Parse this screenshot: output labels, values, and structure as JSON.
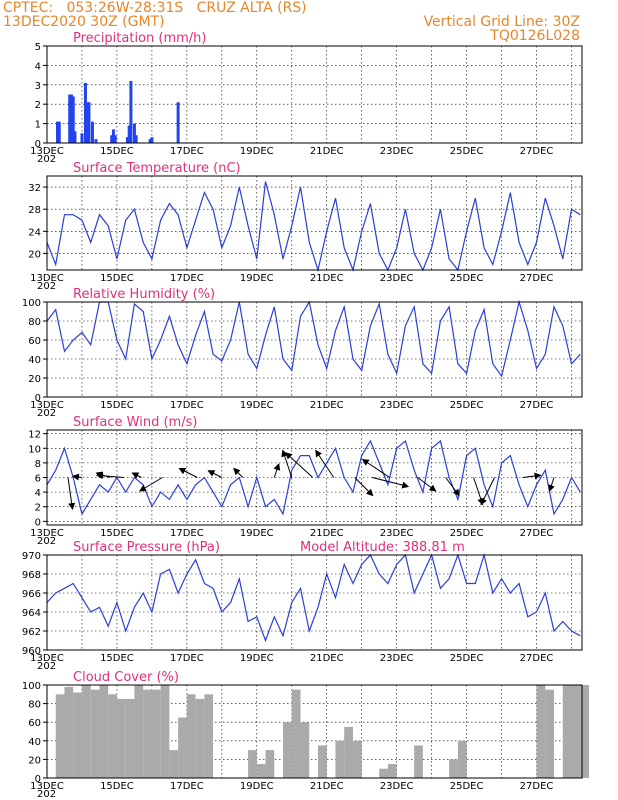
{
  "header": {
    "left1": "CPTEC:   053:26W-28:31S   CRUZ ALTA (RS)",
    "left2": "13DEC2020 30Z (GMT)",
    "right1": "Vertical Grid Line: 30Z",
    "right2": "TQ0126L028"
  },
  "colors": {
    "line": "#2a3fd6",
    "bar": "#2244ee",
    "cloud": "#aaaaaa",
    "title": "#e0307a",
    "header": "#e8862a"
  },
  "x_axis": {
    "date_labels": [
      "13DEC",
      "15DEC",
      "17DEC",
      "19DEC",
      "21DEC",
      "23DEC",
      "25DEC",
      "27DEC"
    ],
    "year_label": "202"
  },
  "chart_data": [
    {
      "type": "bar",
      "title": "Precipitation (mm/h)",
      "ylim": [
        0,
        5
      ],
      "yticks": [
        "0",
        "1",
        "2",
        "3",
        "4",
        "5"
      ],
      "x_days": [
        0.3,
        0.35,
        0.65,
        0.7,
        0.75,
        0.8,
        1.0,
        1.1,
        1.15,
        1.2,
        1.3,
        1.4,
        1.85,
        1.9,
        1.95,
        2.3,
        2.35,
        2.4,
        2.5,
        2.55,
        2.95,
        3.0,
        3.75
      ],
      "values": [
        1.1,
        1.1,
        2.5,
        2.5,
        2.4,
        0.6,
        0.5,
        3.1,
        2.1,
        2.1,
        1.1,
        0.2,
        0.4,
        0.7,
        0.4,
        0.3,
        0.9,
        3.2,
        1.0,
        0.4,
        0.2,
        0.3,
        2.1
      ]
    },
    {
      "type": "line",
      "title": "Surface Temperature (nC)",
      "ylim": [
        17,
        34
      ],
      "yticks": [
        "20",
        "24",
        "28",
        "32"
      ],
      "x_days": [
        0,
        0.25,
        0.5,
        0.75,
        1,
        1.25,
        1.5,
        1.75,
        2,
        2.25,
        2.5,
        2.75,
        3,
        3.25,
        3.5,
        3.75,
        4,
        4.25,
        4.5,
        4.75,
        5,
        5.25,
        5.5,
        5.75,
        6,
        6.25,
        6.5,
        6.75,
        7,
        7.25,
        7.5,
        7.75,
        8,
        8.25,
        8.5,
        8.75,
        9,
        9.25,
        9.5,
        9.75,
        10,
        10.25,
        10.5,
        10.75,
        11,
        11.25,
        11.5,
        11.75,
        12,
        12.25,
        12.5,
        12.75,
        13,
        13.25,
        13.5,
        13.75,
        14,
        14.25,
        14.5,
        14.75,
        15,
        15.25
      ],
      "values": [
        22,
        18,
        27,
        27,
        26,
        22,
        27,
        25,
        19,
        26,
        28,
        22,
        19,
        26,
        29,
        27,
        21,
        26,
        31,
        28,
        21,
        25,
        32,
        25,
        19,
        33,
        27,
        19,
        25,
        32,
        22,
        17,
        24,
        30,
        21,
        17,
        24,
        29,
        20,
        16,
        21,
        28,
        20,
        16,
        21,
        28,
        19,
        16,
        24,
        30,
        21,
        18,
        24,
        31,
        22,
        18,
        22,
        30,
        25,
        19,
        28,
        27
      ]
    },
    {
      "type": "line",
      "title": "Relative Humidity (%)",
      "ylim": [
        0,
        100
      ],
      "yticks": [
        "0",
        "20",
        "40",
        "60",
        "80",
        "100"
      ],
      "x_days": [
        0,
        0.25,
        0.5,
        0.75,
        1,
        1.25,
        1.5,
        1.75,
        2,
        2.25,
        2.5,
        2.75,
        3,
        3.25,
        3.5,
        3.75,
        4,
        4.25,
        4.5,
        4.75,
        5,
        5.25,
        5.5,
        5.75,
        6,
        6.25,
        6.5,
        6.75,
        7,
        7.25,
        7.5,
        7.75,
        8,
        8.25,
        8.5,
        8.75,
        9,
        9.25,
        9.5,
        9.75,
        10,
        10.25,
        10.5,
        10.75,
        11,
        11.25,
        11.5,
        11.75,
        12,
        12.25,
        12.5,
        12.75,
        13,
        13.25,
        13.5,
        13.75,
        14,
        14.25,
        14.5,
        14.75,
        15,
        15.25
      ],
      "values": [
        80,
        92,
        48,
        60,
        68,
        55,
        100,
        100,
        60,
        40,
        98,
        90,
        40,
        60,
        85,
        55,
        35,
        65,
        90,
        45,
        38,
        60,
        100,
        45,
        30,
        65,
        95,
        40,
        28,
        85,
        100,
        55,
        30,
        70,
        95,
        40,
        28,
        75,
        98,
        45,
        25,
        75,
        95,
        35,
        25,
        80,
        95,
        35,
        25,
        70,
        92,
        35,
        22,
        60,
        100,
        70,
        30,
        45,
        95,
        75,
        35,
        45
      ]
    },
    {
      "type": "line",
      "title": "Surface Wind (m/s)",
      "ylim": [
        -0.5,
        12.5
      ],
      "yticks": [
        "0",
        "2",
        "4",
        "6",
        "8",
        "10",
        "12"
      ],
      "x_days": [
        0,
        0.25,
        0.5,
        0.75,
        1,
        1.25,
        1.5,
        1.75,
        2,
        2.25,
        2.5,
        2.75,
        3,
        3.25,
        3.5,
        3.75,
        4,
        4.25,
        4.5,
        4.75,
        5,
        5.25,
        5.5,
        5.75,
        6,
        6.25,
        6.5,
        6.75,
        7,
        7.25,
        7.5,
        7.75,
        8,
        8.25,
        8.5,
        8.75,
        9,
        9.25,
        9.5,
        9.75,
        10,
        10.25,
        10.5,
        10.75,
        11,
        11.25,
        11.5,
        11.75,
        12,
        12.25,
        12.5,
        12.75,
        13,
        13.25,
        13.5,
        13.75,
        14,
        14.25,
        14.5,
        14.75,
        15,
        15.25
      ],
      "values": [
        5,
        7,
        10,
        6,
        1,
        3,
        5,
        4,
        6,
        4,
        6,
        5,
        2,
        4,
        3,
        5,
        3,
        5,
        6,
        4,
        2,
        5,
        6,
        2,
        6,
        2,
        3,
        1,
        7,
        9,
        9,
        6,
        8,
        10,
        6,
        4,
        9,
        11,
        8,
        5,
        10,
        11,
        7,
        4,
        10,
        11,
        6,
        3,
        9,
        10,
        5,
        2,
        8,
        9,
        5,
        2,
        5,
        7,
        1,
        3,
        6,
        4
      ],
      "vectors": [
        {
          "day": 0.6,
          "u": 1.0,
          "v": -7.0
        },
        {
          "day": 1.0,
          "u": -2.0,
          "v": 0.3
        },
        {
          "day": 1.8,
          "u": -3.0,
          "v": 1.0
        },
        {
          "day": 2.2,
          "u": -6.0,
          "v": 0.5
        },
        {
          "day": 2.7,
          "u": -2.0,
          "v": 1.0
        },
        {
          "day": 3.3,
          "u": -5.0,
          "v": -3.0
        },
        {
          "day": 4.3,
          "u": -4.0,
          "v": 2.0
        },
        {
          "day": 5.0,
          "u": -3.0,
          "v": 1.5
        },
        {
          "day": 5.6,
          "u": -2.0,
          "v": 2.0
        },
        {
          "day": 6.5,
          "u": 1.0,
          "v": 3.0
        },
        {
          "day": 7.0,
          "u": -2.0,
          "v": 6.0
        },
        {
          "day": 7.6,
          "u": -6.0,
          "v": 5.5
        },
        {
          "day": 8.2,
          "u": -4.0,
          "v": 6.0
        },
        {
          "day": 8.8,
          "u": 4.0,
          "v": -4.0
        },
        {
          "day": 9.3,
          "u": 8.0,
          "v": -2.0
        },
        {
          "day": 9.8,
          "u": -6.0,
          "v": 4.0
        },
        {
          "day": 10.6,
          "u": 4.0,
          "v": -3.0
        },
        {
          "day": 11.4,
          "u": 3.0,
          "v": -4.0
        },
        {
          "day": 12.2,
          "u": 2.0,
          "v": -6.0
        },
        {
          "day": 12.8,
          "u": -3.0,
          "v": -6.0
        },
        {
          "day": 13.6,
          "u": 4.0,
          "v": 0.5
        },
        {
          "day": 14.5,
          "u": -1.0,
          "v": -3.0
        }
      ]
    },
    {
      "type": "line",
      "title": "Surface Pressure (hPa)",
      "annotation": "Model Altitude: 388.81 m",
      "ylim": [
        960,
        970
      ],
      "yticks": [
        "960",
        "962",
        "964",
        "966",
        "968",
        "970"
      ],
      "x_days": [
        0,
        0.25,
        0.5,
        0.75,
        1,
        1.25,
        1.5,
        1.75,
        2,
        2.25,
        2.5,
        2.75,
        3,
        3.25,
        3.5,
        3.75,
        4,
        4.25,
        4.5,
        4.75,
        5,
        5.25,
        5.5,
        5.75,
        6,
        6.25,
        6.5,
        6.75,
        7,
        7.25,
        7.5,
        7.75,
        8,
        8.25,
        8.5,
        8.75,
        9,
        9.25,
        9.5,
        9.75,
        10,
        10.25,
        10.5,
        10.75,
        11,
        11.25,
        11.5,
        11.75,
        12,
        12.25,
        12.5,
        12.75,
        13,
        13.25,
        13.5,
        13.75,
        14,
        14.25,
        14.5,
        14.75,
        15,
        15.25
      ],
      "values": [
        965,
        966,
        966.5,
        967,
        965.5,
        964,
        964.5,
        962.5,
        965,
        962,
        964.5,
        966,
        964,
        968,
        968.5,
        966,
        968,
        969.5,
        967,
        966.5,
        964,
        965,
        967.5,
        963,
        963.5,
        961,
        963.5,
        961.5,
        965,
        966.5,
        962,
        964.5,
        968,
        965.5,
        969,
        967,
        969,
        970,
        968,
        967,
        969,
        970,
        966,
        968,
        970,
        966.5,
        967.5,
        970,
        967,
        967,
        970,
        966,
        967.5,
        966,
        967,
        963.5,
        964,
        966,
        962,
        963,
        962,
        961.5
      ]
    },
    {
      "type": "bar",
      "title": "Cloud Cover (%)",
      "ylim": [
        0,
        100
      ],
      "yticks": [
        "0",
        "20",
        "40",
        "60",
        "80",
        "100"
      ],
      "x_days": [
        0,
        0.25,
        0.5,
        0.75,
        1,
        1.25,
        1.5,
        1.75,
        2,
        2.25,
        2.5,
        2.75,
        3,
        3.25,
        3.5,
        3.75,
        4,
        4.25,
        4.5,
        4.75,
        5,
        5.25,
        5.5,
        5.75,
        6,
        6.25,
        6.5,
        6.75,
        7,
        7.25,
        7.5,
        7.75,
        8,
        8.25,
        8.5,
        8.75,
        9,
        9.25,
        9.5,
        9.75,
        10,
        10.25,
        10.5,
        10.75,
        11,
        11.25,
        11.5,
        11.75,
        12,
        12.25,
        12.5,
        12.75,
        13,
        13.25,
        13.5,
        13.75,
        14,
        14.25,
        14.5,
        14.75,
        15,
        15.25
      ],
      "values": [
        0,
        90,
        98,
        92,
        100,
        95,
        100,
        90,
        85,
        85,
        100,
        95,
        95,
        100,
        30,
        65,
        90,
        85,
        90,
        0,
        0,
        0,
        0,
        30,
        15,
        30,
        0,
        60,
        95,
        60,
        0,
        35,
        0,
        40,
        55,
        40,
        0,
        0,
        10,
        15,
        0,
        0,
        35,
        0,
        0,
        0,
        20,
        40,
        0,
        0,
        0,
        0,
        0,
        0,
        0,
        0,
        100,
        95,
        0,
        100,
        100,
        100
      ]
    }
  ]
}
